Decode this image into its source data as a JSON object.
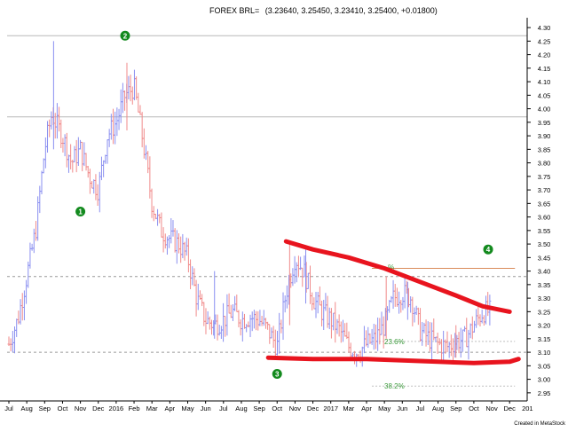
{
  "header": {
    "title": "FOREX BRL=",
    "ohlc": "(3.23640, 3.25450, 3.23410, 3.25400, +0.01800)"
  },
  "footer": {
    "credit": "Created in MetaStock"
  },
  "colors": {
    "up_bar": "#8a8ff0",
    "down_bar": "#f08a8a",
    "trendline": "#e8141e",
    "marker": "#138a1e",
    "fib_text": "#3a9a3a",
    "fib_line_38": "#bfbfbf",
    "fib_line_top": "#d98a5a",
    "axis": "#000000",
    "grid_dash": "#999999"
  },
  "chart_data": {
    "type": "candlestick",
    "title": "FOREX BRL= (3.23640, 3.25450, 3.23410, 3.25400, +0.01800)",
    "ylim": [
      2.92,
      4.32
    ],
    "y_ticks": [
      2.95,
      3.0,
      3.05,
      3.1,
      3.15,
      3.2,
      3.25,
      3.3,
      3.35,
      3.4,
      3.45,
      3.5,
      3.55,
      3.6,
      3.65,
      3.7,
      3.75,
      3.8,
      3.85,
      3.9,
      3.95,
      4.0,
      4.05,
      4.1,
      4.15,
      4.2,
      4.25,
      4.3
    ],
    "x_range": [
      0,
      28.3
    ],
    "x_ticks": [
      {
        "x": 0,
        "label": "Jul"
      },
      {
        "x": 1,
        "label": "Aug"
      },
      {
        "x": 2,
        "label": "Sep"
      },
      {
        "x": 3,
        "label": "Oct"
      },
      {
        "x": 4,
        "label": "Nov"
      },
      {
        "x": 5,
        "label": "Dec"
      },
      {
        "x": 6,
        "label": "2016"
      },
      {
        "x": 7,
        "label": "Feb"
      },
      {
        "x": 8,
        "label": "Mar"
      },
      {
        "x": 9,
        "label": "Apr"
      },
      {
        "x": 10,
        "label": "May"
      },
      {
        "x": 11,
        "label": "Jun"
      },
      {
        "x": 12,
        "label": "Jul"
      },
      {
        "x": 13,
        "label": "Aug"
      },
      {
        "x": 14,
        "label": "Sep"
      },
      {
        "x": 15,
        "label": "Oct"
      },
      {
        "x": 16,
        "label": "Nov"
      },
      {
        "x": 17,
        "label": "Dec"
      },
      {
        "x": 18,
        "label": "2017"
      },
      {
        "x": 19,
        "label": "Mar"
      },
      {
        "x": 20,
        "label": "Apr"
      },
      {
        "x": 21,
        "label": "May"
      },
      {
        "x": 22,
        "label": "Jun"
      },
      {
        "x": 23,
        "label": "Jul"
      },
      {
        "x": 24,
        "label": "Aug"
      },
      {
        "x": 25,
        "label": "Sep"
      },
      {
        "x": 26,
        "label": "Oct"
      },
      {
        "x": 27,
        "label": "Nov"
      },
      {
        "x": 28,
        "label": "Dec"
      },
      {
        "x": 29,
        "label": "201"
      }
    ],
    "price_path": [
      [
        0.0,
        3.13
      ],
      [
        0.5,
        3.22
      ],
      [
        1.0,
        3.38
      ],
      [
        1.5,
        3.55
      ],
      [
        2.0,
        3.85
      ],
      [
        2.4,
        3.98
      ],
      [
        2.6,
        3.95
      ],
      [
        3.0,
        3.9
      ],
      [
        3.5,
        3.8
      ],
      [
        4.0,
        3.85
      ],
      [
        4.5,
        3.75
      ],
      [
        5.0,
        3.7
      ],
      [
        5.5,
        3.9
      ],
      [
        6.0,
        3.95
      ],
      [
        6.5,
        4.05
      ],
      [
        7.0,
        4.08
      ],
      [
        7.5,
        3.88
      ],
      [
        8.0,
        3.65
      ],
      [
        8.5,
        3.55
      ],
      [
        9.0,
        3.52
      ],
      [
        9.5,
        3.5
      ],
      [
        10.0,
        3.45
      ],
      [
        10.5,
        3.3
      ],
      [
        11.0,
        3.22
      ],
      [
        11.5,
        3.2
      ],
      [
        12.0,
        3.22
      ],
      [
        12.5,
        3.25
      ],
      [
        13.0,
        3.22
      ],
      [
        13.5,
        3.23
      ],
      [
        14.0,
        3.22
      ],
      [
        14.5,
        3.18
      ],
      [
        15.0,
        3.12
      ],
      [
        15.5,
        3.32
      ],
      [
        16.0,
        3.45
      ],
      [
        16.5,
        3.4
      ],
      [
        17.0,
        3.3
      ],
      [
        17.5,
        3.25
      ],
      [
        18.0,
        3.22
      ],
      [
        18.5,
        3.18
      ],
      [
        19.0,
        3.12
      ],
      [
        19.5,
        3.1
      ],
      [
        20.0,
        3.13
      ],
      [
        20.5,
        3.15
      ],
      [
        21.0,
        3.2
      ],
      [
        21.5,
        3.3
      ],
      [
        22.0,
        3.32
      ],
      [
        22.5,
        3.3
      ],
      [
        23.0,
        3.18
      ],
      [
        23.5,
        3.15
      ],
      [
        24.0,
        3.13
      ],
      [
        24.5,
        3.12
      ],
      [
        25.0,
        3.14
      ],
      [
        25.5,
        3.15
      ],
      [
        26.0,
        3.2
      ],
      [
        26.5,
        3.25
      ],
      [
        27.0,
        3.25
      ]
    ],
    "spikes": [
      {
        "x": 2.5,
        "high": 4.25,
        "low": 3.85
      },
      {
        "x": 6.6,
        "high": 4.17,
        "low": 3.92
      },
      {
        "x": 11.5,
        "high": 3.4,
        "low": 3.15
      },
      {
        "x": 15.7,
        "high": 3.5,
        "low": 3.2
      },
      {
        "x": 16.6,
        "high": 3.48,
        "low": 3.28
      },
      {
        "x": 21.1,
        "high": 3.38,
        "low": 3.15
      },
      {
        "x": 22.3,
        "high": 3.36,
        "low": 3.22
      },
      {
        "x": 25.0,
        "high": 3.2,
        "low": 3.08
      }
    ],
    "horizontal_lines": [
      {
        "y": 4.27,
        "style": "solid"
      },
      {
        "y": 3.97,
        "style": "solid"
      },
      {
        "y": 3.38,
        "style": "dashed"
      },
      {
        "y": 3.1,
        "style": "dashed"
      }
    ],
    "fib_lines": [
      {
        "label": "",
        "y": 3.41,
        "x_start": 20.3,
        "x_end": 28.3,
        "style": "solid-top"
      },
      {
        "label": "23.6%",
        "y": 3.14,
        "x_start": 20.3,
        "x_end": 28.3,
        "style": "dotted"
      },
      {
        "label": "38.2%",
        "y": 2.975,
        "x_start": 20.3,
        "x_end": 28.3,
        "style": "dotted"
      }
    ],
    "fib_partial_label": {
      "text": "%",
      "x": 21.2,
      "y": 3.415
    },
    "trendlines": [
      {
        "name": "upper",
        "points": [
          [
            15.5,
            3.51
          ],
          [
            17.0,
            3.48
          ],
          [
            19.0,
            3.45
          ],
          [
            21.0,
            3.41
          ],
          [
            23.0,
            3.36
          ],
          [
            25.0,
            3.31
          ],
          [
            26.5,
            3.27
          ],
          [
            28.0,
            3.25
          ]
        ]
      },
      {
        "name": "lower",
        "points": [
          [
            14.5,
            3.08
          ],
          [
            17.0,
            3.075
          ],
          [
            20.0,
            3.075
          ],
          [
            22.0,
            3.07
          ],
          [
            24.0,
            3.065
          ],
          [
            26.0,
            3.06
          ],
          [
            28.0,
            3.065
          ],
          [
            28.5,
            3.075
          ]
        ]
      }
    ],
    "markers": [
      {
        "label": "1",
        "x": 4.0,
        "y": 3.62
      },
      {
        "label": "2",
        "x": 6.5,
        "y": 4.27
      },
      {
        "label": "3",
        "x": 15.0,
        "y": 3.02
      },
      {
        "label": "4",
        "x": 26.8,
        "y": 3.48
      }
    ]
  }
}
